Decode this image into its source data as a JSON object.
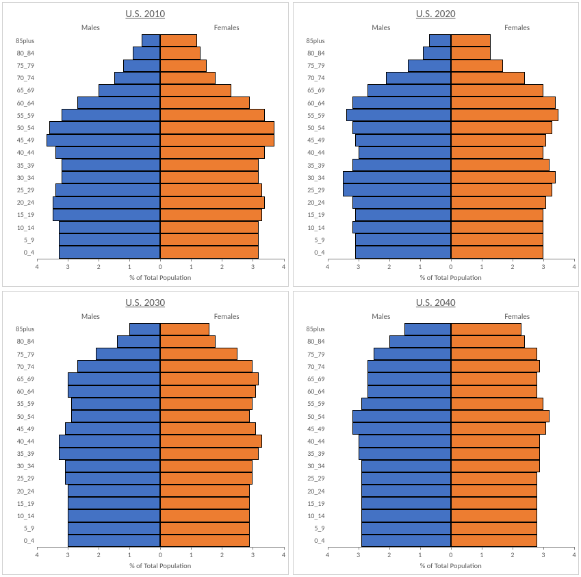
{
  "global": {
    "male_color": "#4472c4",
    "female_color": "#ed7d31",
    "border_color": "#000000",
    "panel_border_color": "#d0d0d0",
    "axis_color": "#808080",
    "text_color": "#595959",
    "background_color": "#ffffff",
    "title_fontsize": 15,
    "label_fontsize": 10,
    "xlabel_fontsize": 10.5,
    "legend_fontsize": 11,
    "xmax": 4,
    "xtick_step": 1,
    "xticks": [
      4,
      3,
      2,
      1,
      0,
      1,
      2,
      3,
      4
    ],
    "xlabel": "% of Total Population",
    "male_label": "Males",
    "female_label": "Females",
    "age_groups": [
      "0_4",
      "5_9",
      "10_14",
      "15_19",
      "20_24",
      "25_29",
      "30_34",
      "35_39",
      "40_44",
      "45_49",
      "50_54",
      "55_59",
      "60_64",
      "65_69",
      "70_74",
      "75_79",
      "80_84",
      "85plus"
    ]
  },
  "panels": [
    {
      "title": "U.S. 2010",
      "males": [
        3.3,
        3.3,
        3.3,
        3.5,
        3.5,
        3.4,
        3.2,
        3.2,
        3.4,
        3.7,
        3.6,
        3.2,
        2.7,
        2.0,
        1.5,
        1.2,
        0.9,
        0.6
      ],
      "females": [
        3.2,
        3.2,
        3.2,
        3.3,
        3.4,
        3.3,
        3.2,
        3.2,
        3.4,
        3.7,
        3.7,
        3.4,
        2.9,
        2.3,
        1.8,
        1.5,
        1.3,
        1.2
      ]
    },
    {
      "title": "U.S. 2020",
      "males": [
        3.1,
        3.1,
        3.2,
        3.1,
        3.2,
        3.5,
        3.5,
        3.2,
        3.0,
        3.1,
        3.2,
        3.4,
        3.2,
        2.7,
        2.1,
        1.4,
        0.9,
        0.7
      ],
      "females": [
        3.0,
        3.0,
        3.0,
        3.0,
        3.1,
        3.3,
        3.4,
        3.2,
        3.0,
        3.1,
        3.3,
        3.5,
        3.4,
        3.0,
        2.4,
        1.7,
        1.3,
        1.3
      ]
    },
    {
      "title": "U.S. 2030",
      "males": [
        3.0,
        3.0,
        3.0,
        3.0,
        3.0,
        3.1,
        3.1,
        3.3,
        3.3,
        3.1,
        2.9,
        2.9,
        3.0,
        3.0,
        2.7,
        2.1,
        1.4,
        1.0
      ],
      "females": [
        2.9,
        2.9,
        2.9,
        2.9,
        2.9,
        3.0,
        3.0,
        3.2,
        3.3,
        3.1,
        2.9,
        3.0,
        3.1,
        3.2,
        3.0,
        2.5,
        1.8,
        1.6
      ]
    },
    {
      "title": "U.S. 2040",
      "males": [
        2.9,
        2.9,
        2.9,
        2.9,
        2.9,
        2.9,
        2.9,
        3.0,
        3.0,
        3.2,
        3.2,
        2.9,
        2.7,
        2.7,
        2.7,
        2.5,
        2.0,
        1.5
      ],
      "females": [
        2.8,
        2.8,
        2.8,
        2.8,
        2.8,
        2.8,
        2.9,
        2.9,
        2.9,
        3.1,
        3.2,
        3.0,
        2.8,
        2.8,
        2.9,
        2.8,
        2.4,
        2.3
      ]
    }
  ]
}
